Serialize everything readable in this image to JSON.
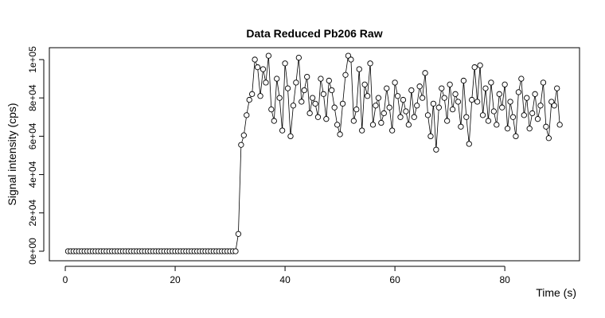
{
  "chart_data": {
    "type": "line",
    "title": "Data Reduced Pb206 Raw",
    "x_label": "Time (s)",
    "y_label": "Signal intensity (cps)",
    "color": "#000000",
    "xlim": [
      -2.9,
      93.6
    ],
    "ylim": [
      -4980,
      106200
    ],
    "xticks": [
      0,
      20,
      40,
      60,
      80
    ],
    "yticks": [
      {
        "value": 0,
        "label": "0e+00"
      },
      {
        "value": 20000,
        "label": "2e+04"
      },
      {
        "value": 40000,
        "label": "4e+04"
      },
      {
        "value": 60000,
        "label": "6e+04"
      },
      {
        "value": 80000,
        "label": "8e+04"
      },
      {
        "value": 100000,
        "label": "1e+05"
      }
    ],
    "x": [
      0.5,
      1,
      1.5,
      2,
      2.5,
      3,
      3.5,
      4,
      4.5,
      5,
      5.5,
      6,
      6.5,
      7,
      7.5,
      8,
      8.5,
      9,
      9.5,
      10,
      10.5,
      11,
      11.5,
      12,
      12.5,
      13,
      13.5,
      14,
      14.5,
      15,
      15.5,
      16,
      16.5,
      17,
      17.5,
      18,
      18.5,
      19,
      19.5,
      20,
      20.5,
      21,
      21.5,
      22,
      22.5,
      23,
      23.5,
      24,
      24.5,
      25,
      25.5,
      26,
      26.5,
      27,
      27.5,
      28,
      28.5,
      29,
      29.5,
      30,
      30.5,
      31,
      31.5,
      32,
      32.5,
      33,
      33.5,
      34,
      34.5,
      35,
      35.5,
      36,
      36.5,
      37,
      37.5,
      38,
      38.5,
      39,
      39.5,
      40,
      40.5,
      41,
      41.5,
      42,
      42.5,
      43,
      43.5,
      44,
      44.5,
      45,
      45.5,
      46,
      46.5,
      47,
      47.5,
      48,
      48.5,
      49,
      49.5,
      50,
      50.5,
      51,
      51.5,
      52,
      52.5,
      53,
      53.5,
      54,
      54.5,
      55,
      55.5,
      56,
      56.5,
      57,
      57.5,
      58,
      58.5,
      59,
      59.5,
      60,
      60.5,
      61,
      61.5,
      62,
      62.5,
      63,
      63.5,
      64,
      64.5,
      65,
      65.5,
      66,
      66.5,
      67,
      67.5,
      68,
      68.5,
      69,
      69.5,
      70,
      70.5,
      71,
      71.5,
      72,
      72.5,
      73,
      73.5,
      74,
      74.5,
      75,
      75.5,
      76,
      76.5,
      77,
      77.5,
      78,
      78.5,
      79,
      79.5,
      80,
      80.5,
      81,
      81.5,
      82,
      82.5,
      83,
      83.5,
      84,
      84.5,
      85,
      85.5,
      86,
      86.5,
      87,
      87.5,
      88,
      88.5,
      89,
      89.5,
      90
    ],
    "values": [
      0,
      0,
      0,
      0,
      0,
      0,
      0,
      0,
      0,
      0,
      0,
      0,
      0,
      0,
      0,
      0,
      0,
      0,
      0,
      0,
      0,
      0,
      0,
      0,
      0,
      0,
      0,
      0,
      0,
      0,
      0,
      0,
      0,
      0,
      0,
      0,
      0,
      0,
      0,
      0,
      0,
      0,
      0,
      0,
      0,
      0,
      0,
      0,
      0,
      0,
      0,
      0,
      0,
      0,
      0,
      0,
      0,
      0,
      0,
      0,
      0,
      0,
      9000,
      55500,
      60500,
      71000,
      79000,
      82000,
      100000,
      96000,
      81000,
      95000,
      88000,
      102000,
      74000,
      68000,
      90000,
      80000,
      63000,
      98000,
      85000,
      60000,
      76000,
      88000,
      101000,
      78000,
      84000,
      91000,
      72000,
      80000,
      77000,
      70000,
      90000,
      82000,
      69000,
      89000,
      84000,
      75000,
      66000,
      61000,
      77000,
      92000,
      102000,
      100000,
      68000,
      74000,
      95000,
      63000,
      87000,
      81000,
      98000,
      66000,
      76000,
      80000,
      67000,
      72000,
      85000,
      75000,
      63000,
      88000,
      81000,
      70000,
      79000,
      73000,
      66000,
      84000,
      70000,
      76000,
      86000,
      80000,
      93000,
      71000,
      60000,
      77000,
      53000,
      75000,
      85000,
      80000,
      68000,
      87000,
      74000,
      82000,
      78000,
      65000,
      89000,
      70000,
      56000,
      79000,
      96000,
      78000,
      97000,
      71000,
      85000,
      68000,
      88000,
      73000,
      66000,
      82000,
      75000,
      87000,
      64000,
      78000,
      70000,
      60000,
      83000,
      90000,
      71000,
      80000,
      64000,
      72000,
      82000,
      69000,
      76000,
      88000,
      65000,
      59000,
      78000,
      76000,
      85000,
      66000
    ]
  }
}
